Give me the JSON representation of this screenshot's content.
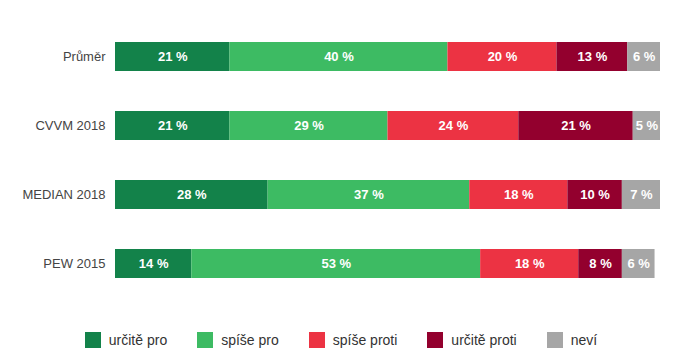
{
  "chart_data": {
    "type": "bar",
    "orientation": "horizontal",
    "stacked": true,
    "data_labels": true,
    "tick_labels": "y",
    "legend": "bottom",
    "xlim": [
      0,
      100
    ],
    "categories": [
      "Průměr",
      "CVVM 2018",
      "MEDIAN 2018",
      "PEW 2015"
    ],
    "series": [
      {
        "name": "určitě pro",
        "color": "#13824a",
        "values": [
          21,
          21,
          28,
          14
        ],
        "value_labels": [
          "21 %",
          "21 %",
          "28 %",
          "14 %"
        ]
      },
      {
        "name": "spíše pro",
        "color": "#3dbb63",
        "values": [
          40,
          29,
          37,
          53
        ],
        "value_labels": [
          "40 %",
          "29 %",
          "37 %",
          "53 %"
        ]
      },
      {
        "name": "spíše proti",
        "color": "#ec3343",
        "values": [
          20,
          24,
          18,
          18
        ],
        "value_labels": [
          "20 %",
          "24 %",
          "18 %",
          "18 %"
        ]
      },
      {
        "name": "určitě proti",
        "color": "#93002e",
        "values": [
          13,
          21,
          10,
          8
        ],
        "value_labels": [
          "13 %",
          "21 %",
          "10 %",
          "8 %"
        ]
      },
      {
        "name": "neví",
        "color": "#a6a6a6",
        "values": [
          6,
          5,
          7,
          6
        ],
        "value_labels": [
          "6 %",
          "5 %",
          "7 %",
          "6 %"
        ]
      }
    ]
  }
}
